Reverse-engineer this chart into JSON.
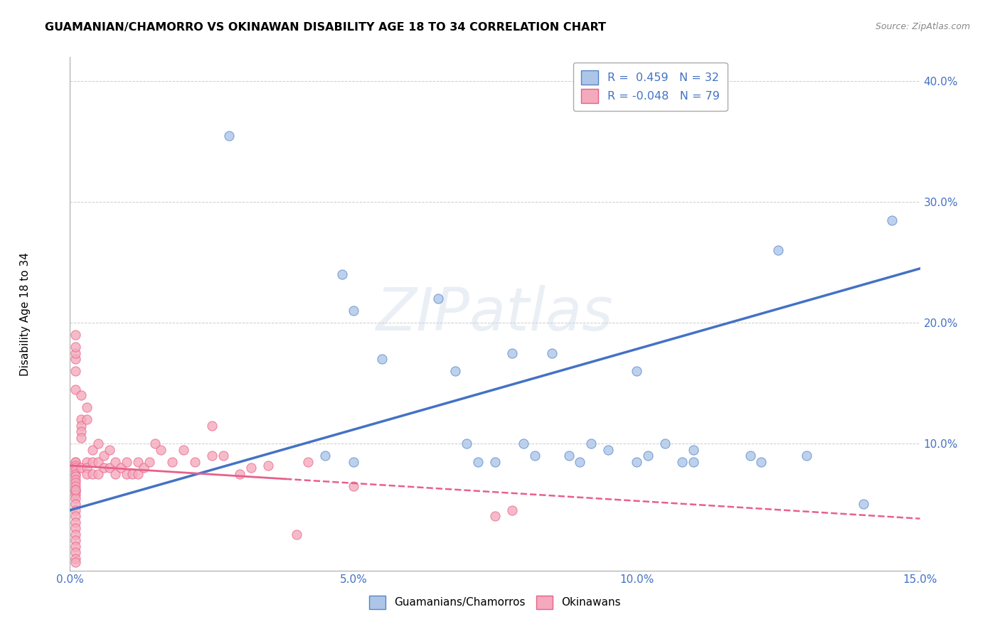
{
  "title": "GUAMANIAN/CHAMORRO VS OKINAWAN DISABILITY AGE 18 TO 34 CORRELATION CHART",
  "source": "Source: ZipAtlas.com",
  "ylabel": "Disability Age 18 to 34",
  "xlim": [
    0,
    0.15
  ],
  "ylim": [
    -0.005,
    0.42
  ],
  "xticks": [
    0.0,
    0.05,
    0.1,
    0.15
  ],
  "xtick_labels": [
    "0.0%",
    "5.0%",
    "10.0%",
    "15.0%"
  ],
  "yticks": [
    0.1,
    0.2,
    0.3,
    0.4
  ],
  "ytick_labels": [
    "10.0%",
    "20.0%",
    "30.0%",
    "40.0%"
  ],
  "blue_r": "0.459",
  "blue_n": "32",
  "pink_r": "-0.048",
  "pink_n": "79",
  "blue_color": "#adc6e8",
  "pink_color": "#f4aabc",
  "blue_edge_color": "#5585c8",
  "pink_edge_color": "#e8608a",
  "blue_line_color": "#4472c4",
  "pink_line_color": "#e8608a",
  "watermark": "ZIPatlas",
  "blue_scatter_x": [
    0.028,
    0.045,
    0.048,
    0.05,
    0.05,
    0.055,
    0.065,
    0.068,
    0.07,
    0.072,
    0.075,
    0.078,
    0.08,
    0.082,
    0.085,
    0.088,
    0.09,
    0.092,
    0.095,
    0.1,
    0.1,
    0.102,
    0.105,
    0.108,
    0.11,
    0.11,
    0.12,
    0.122,
    0.125,
    0.13,
    0.14,
    0.145
  ],
  "blue_scatter_y": [
    0.355,
    0.09,
    0.24,
    0.21,
    0.085,
    0.17,
    0.22,
    0.16,
    0.1,
    0.085,
    0.085,
    0.175,
    0.1,
    0.09,
    0.175,
    0.09,
    0.085,
    0.1,
    0.095,
    0.085,
    0.16,
    0.09,
    0.1,
    0.085,
    0.095,
    0.085,
    0.09,
    0.085,
    0.26,
    0.09,
    0.05,
    0.285
  ],
  "pink_scatter_x": [
    0.001,
    0.001,
    0.001,
    0.001,
    0.001,
    0.001,
    0.001,
    0.001,
    0.001,
    0.001,
    0.001,
    0.001,
    0.001,
    0.001,
    0.001,
    0.001,
    0.001,
    0.001,
    0.001,
    0.001,
    0.001,
    0.001,
    0.001,
    0.001,
    0.001,
    0.001,
    0.001,
    0.001,
    0.001,
    0.001,
    0.001,
    0.001,
    0.002,
    0.002,
    0.002,
    0.002,
    0.002,
    0.002,
    0.003,
    0.003,
    0.003,
    0.003,
    0.003,
    0.004,
    0.004,
    0.004,
    0.005,
    0.005,
    0.005,
    0.006,
    0.006,
    0.007,
    0.007,
    0.008,
    0.008,
    0.009,
    0.01,
    0.01,
    0.011,
    0.012,
    0.012,
    0.013,
    0.014,
    0.015,
    0.016,
    0.018,
    0.02,
    0.022,
    0.025,
    0.025,
    0.027,
    0.03,
    0.032,
    0.035,
    0.04,
    0.042,
    0.05,
    0.075,
    0.078
  ],
  "pink_scatter_y": [
    0.085,
    0.085,
    0.082,
    0.08,
    0.078,
    0.075,
    0.073,
    0.07,
    0.068,
    0.065,
    0.062,
    0.06,
    0.058,
    0.055,
    0.05,
    0.045,
    0.04,
    0.035,
    0.03,
    0.025,
    0.02,
    0.015,
    0.01,
    0.005,
    0.002,
    0.145,
    0.16,
    0.17,
    0.175,
    0.18,
    0.19,
    0.062,
    0.14,
    0.12,
    0.115,
    0.11,
    0.105,
    0.08,
    0.13,
    0.12,
    0.085,
    0.08,
    0.075,
    0.095,
    0.085,
    0.075,
    0.1,
    0.085,
    0.075,
    0.09,
    0.08,
    0.095,
    0.08,
    0.085,
    0.075,
    0.08,
    0.085,
    0.075,
    0.075,
    0.085,
    0.075,
    0.08,
    0.085,
    0.1,
    0.095,
    0.085,
    0.095,
    0.085,
    0.115,
    0.09,
    0.09,
    0.075,
    0.08,
    0.082,
    0.025,
    0.085,
    0.065,
    0.04,
    0.045
  ],
  "blue_line_x0": 0.0,
  "blue_line_y0": 0.045,
  "blue_line_x1": 0.15,
  "blue_line_y1": 0.245,
  "pink_line_x0": 0.0,
  "pink_line_y0": 0.082,
  "pink_line_x1": 0.15,
  "pink_line_y1": 0.038
}
